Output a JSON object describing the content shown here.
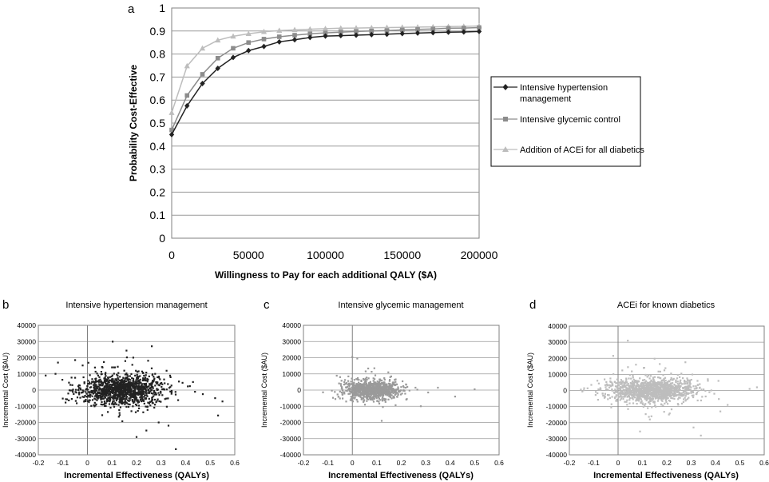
{
  "colors": {
    "hypertension": "#222222",
    "glycemic": "#8c8c8c",
    "acei": "#bdbdbd",
    "grid": "#9a9a9a",
    "axis": "#808080",
    "scatter_b": "#222222",
    "scatter_c": "#9a9a9a",
    "scatter_d": "#bdbdbd"
  },
  "chart_data": [
    {
      "panel_label": "a",
      "type": "line",
      "title": "",
      "xlabel": "Willingness to Pay for each additional QALY ($A)",
      "ylabel": "Probability Cost-Effective",
      "xlim": [
        0,
        200000
      ],
      "ylim": [
        0,
        1
      ],
      "x_ticks": [
        "0",
        "50000",
        "100000",
        "150000",
        "200000"
      ],
      "y_ticks": [
        "0",
        "0.1",
        "0.2",
        "0.3",
        "0.4",
        "0.5",
        "0.6",
        "0.7",
        "0.8",
        "0.9",
        "1"
      ],
      "grid": true,
      "legend_position": "right",
      "x": [
        0,
        10000,
        20000,
        30000,
        40000,
        50000,
        60000,
        70000,
        80000,
        90000,
        100000,
        110000,
        120000,
        130000,
        140000,
        150000,
        160000,
        170000,
        180000,
        190000,
        200000
      ],
      "series": [
        {
          "name": "Intensive hypertension management",
          "marker": "diamond",
          "values": [
            0.45,
            0.575,
            0.672,
            0.738,
            0.785,
            0.815,
            0.833,
            0.853,
            0.862,
            0.872,
            0.878,
            0.88,
            0.882,
            0.884,
            0.886,
            0.889,
            0.891,
            0.893,
            0.895,
            0.896,
            0.898
          ]
        },
        {
          "name": "Intensive glycemic control",
          "marker": "square",
          "values": [
            0.47,
            0.62,
            0.712,
            0.782,
            0.825,
            0.85,
            0.865,
            0.875,
            0.882,
            0.888,
            0.892,
            0.895,
            0.898,
            0.9,
            0.902,
            0.905,
            0.907,
            0.909,
            0.912,
            0.913,
            0.915
          ]
        },
        {
          "name": "Addition of ACEi for all diabetics",
          "marker": "triangle",
          "values": [
            0.545,
            0.748,
            0.825,
            0.86,
            0.877,
            0.888,
            0.897,
            0.902,
            0.905,
            0.908,
            0.91,
            0.912,
            0.913,
            0.914,
            0.915,
            0.916,
            0.917,
            0.918,
            0.919,
            0.92,
            0.922
          ]
        }
      ]
    },
    {
      "panel_label": "b",
      "type": "scatter",
      "title": "Intensive hypertension management",
      "xlabel": "Incremental Effectiveness (QALYs)",
      "ylabel": "Incremental Cost ($AU)",
      "xlim": [
        -0.2,
        0.6
      ],
      "ylim": [
        -40000,
        40000
      ],
      "x_ticks": [
        "-0.2",
        "-0.1",
        "0",
        "0.1",
        "0.2",
        "0.3",
        "0.4",
        "0.5",
        "0.6"
      ],
      "y_ticks": [
        "-40000",
        "-30000",
        "-20000",
        "-10000",
        "0",
        "10000",
        "20000",
        "30000",
        "40000"
      ],
      "grid": true,
      "cloud": {
        "n": 1200,
        "x_mean": 0.14,
        "x_sd": 0.085,
        "y_mean": 0,
        "y_sd": 4500
      },
      "outliers": [
        [
          -0.17,
          9000
        ],
        [
          -0.13,
          10000
        ],
        [
          -0.12,
          17000
        ],
        [
          -0.05,
          18500
        ],
        [
          0.2,
          -29000
        ],
        [
          0.36,
          -36500
        ],
        [
          0.52,
          -5000
        ],
        [
          0.55,
          -7000
        ],
        [
          0.47,
          -2500
        ],
        [
          0.43,
          5000
        ],
        [
          0.1,
          14000
        ],
        [
          0.15,
          12000
        ],
        [
          0.33,
          -22000
        ],
        [
          0.29,
          -20000
        ],
        [
          0.24,
          -25000
        ],
        [
          0.06,
          -15500
        ]
      ]
    },
    {
      "panel_label": "c",
      "type": "scatter",
      "title": "Intensive glycemic management",
      "xlabel": "Incremental Effectiveness (QALYs)",
      "ylabel": "Incremental Cost ($AU)",
      "xlim": [
        -0.2,
        0.6
      ],
      "ylim": [
        -40000,
        40000
      ],
      "x_ticks": [
        "-0.2",
        "-0.1",
        "0",
        "0.1",
        "0.2",
        "0.3",
        "0.4",
        "0.5",
        "0.6"
      ],
      "y_ticks": [
        "-40000",
        "-30000",
        "-20000",
        "-10000",
        "0",
        "10000",
        "20000",
        "30000",
        "40000"
      ],
      "grid": true,
      "cloud": {
        "n": 1000,
        "x_mean": 0.08,
        "x_sd": 0.055,
        "y_mean": 0,
        "y_sd": 2800
      },
      "outliers": [
        [
          0.0,
          20500
        ],
        [
          0.02,
          19500
        ],
        [
          0.09,
          13500
        ],
        [
          0.12,
          -19000
        ],
        [
          0.31,
          -1500
        ],
        [
          0.42,
          -4000
        ],
        [
          0.5,
          500
        ],
        [
          0.28,
          -10000
        ],
        [
          0.35,
          1500
        ],
        [
          -0.05,
          8000
        ]
      ]
    },
    {
      "panel_label": "d",
      "type": "scatter",
      "title": "ACEi for known diabetics",
      "xlabel": "Incremental Effectiveness (QALYs)",
      "ylabel": "Incremental Cost ($AU)",
      "xlim": [
        -0.2,
        0.6
      ],
      "ylim": [
        -40000,
        40000
      ],
      "x_ticks": [
        "-0.2",
        "-0.1",
        "0",
        "0.1",
        "0.2",
        "0.3",
        "0.4",
        "0.5",
        "0.6"
      ],
      "y_ticks": [
        "-40000",
        "-30000",
        "-20000",
        "-10000",
        "0",
        "10000",
        "20000",
        "30000",
        "40000"
      ],
      "grid": true,
      "cloud": {
        "n": 1300,
        "x_mean": 0.14,
        "x_sd": 0.09,
        "y_mean": 0,
        "y_sd": 3500
      },
      "outliers": [
        [
          -0.02,
          21500
        ],
        [
          0.04,
          31000
        ],
        [
          0.19,
          12500
        ],
        [
          0.34,
          -28000
        ],
        [
          0.31,
          -23000
        ],
        [
          0.57,
          2000
        ],
        [
          0.54,
          1000
        ],
        [
          0.45,
          -9000
        ],
        [
          0.09,
          -25500
        ],
        [
          -0.11,
          3500
        ],
        [
          0.42,
          -13000
        ],
        [
          0.26,
          10500
        ]
      ]
    }
  ]
}
